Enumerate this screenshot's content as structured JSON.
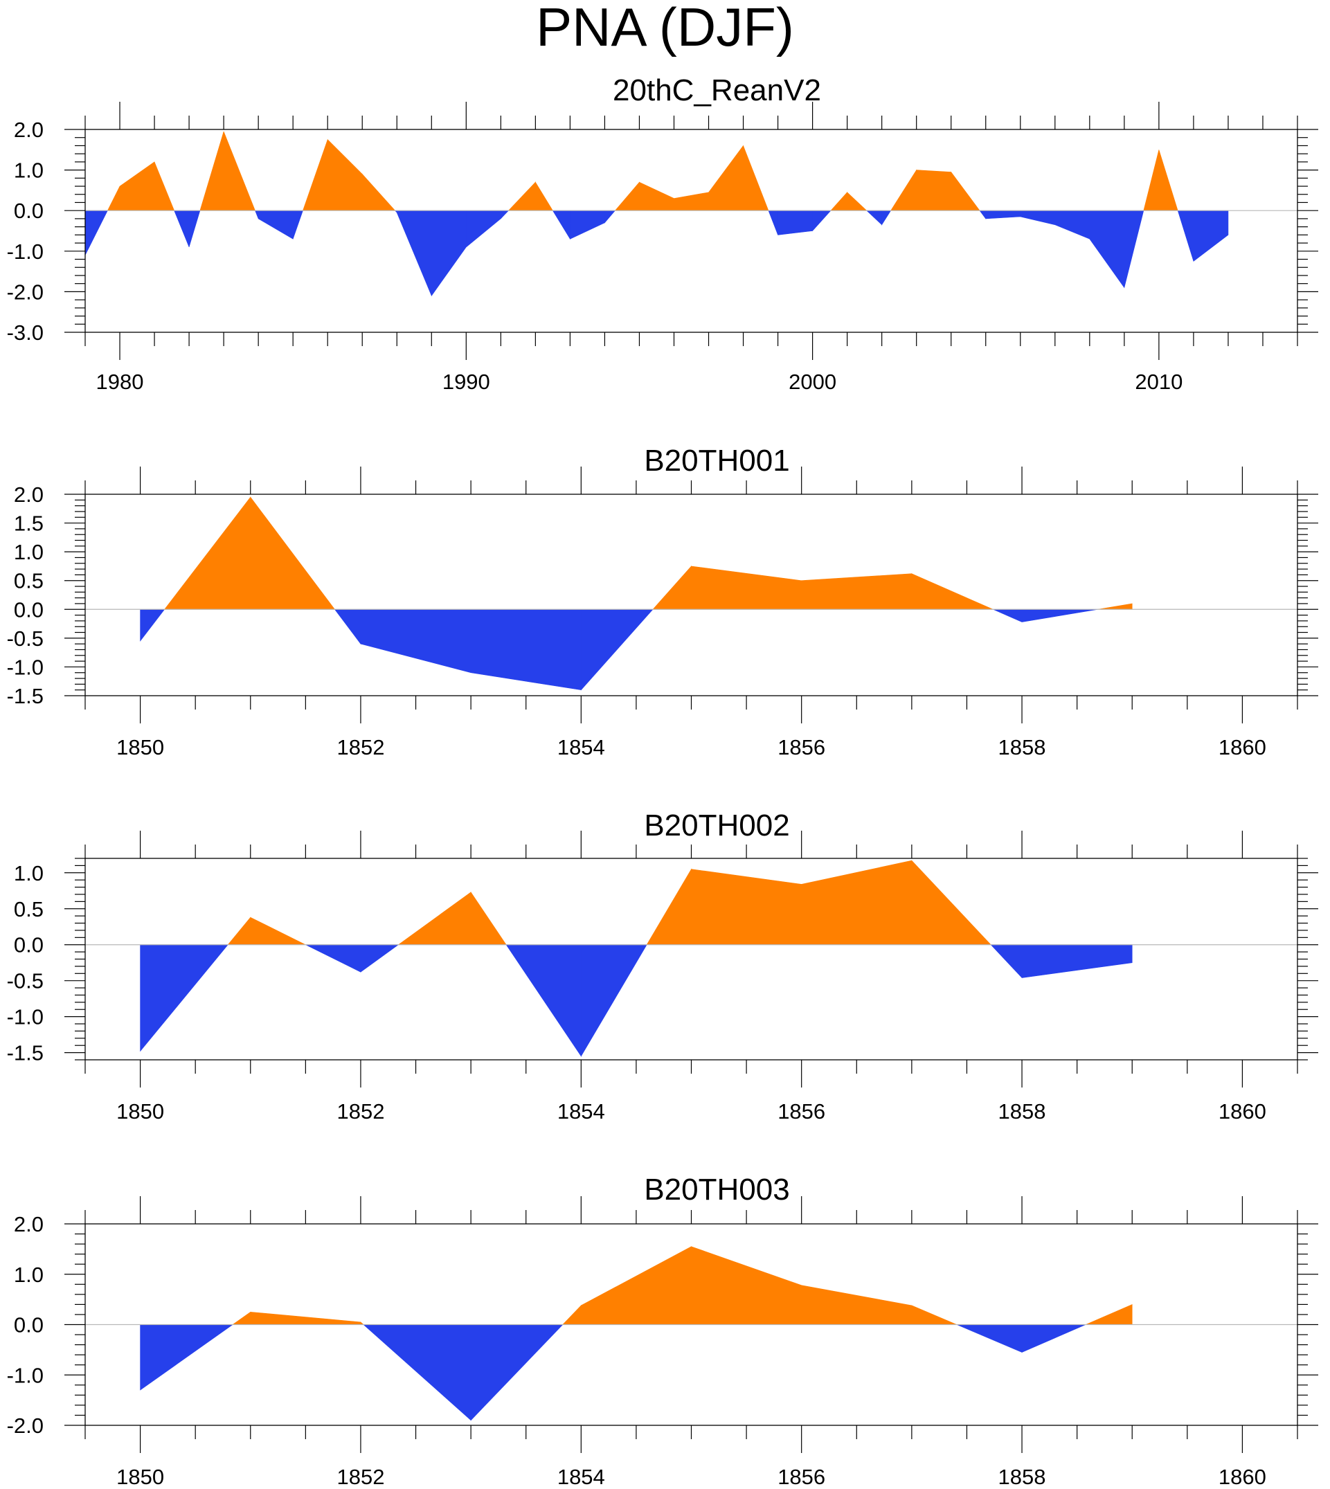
{
  "title": "PNA (DJF)",
  "colors": {
    "positive": "#ff8000",
    "negative": "#2640eb",
    "zero_line": "#b8b8b8",
    "axis": "#000000"
  },
  "chart_data": [
    {
      "type": "area",
      "title": "20thC_ReanV2",
      "x": [
        1979,
        1980,
        1981,
        1982,
        1983,
        1984,
        1985,
        1986,
        1987,
        1988,
        1989,
        1990,
        1991,
        1992,
        1993,
        1994,
        1995,
        1996,
        1997,
        1998,
        1999,
        2000,
        2001,
        2002,
        2003,
        2004,
        2005,
        2006,
        2007,
        2008,
        2009,
        2010,
        2011,
        2012
      ],
      "values": [
        -1.1,
        0.6,
        1.2,
        -0.9,
        1.95,
        -0.2,
        -0.7,
        1.75,
        0.9,
        -0.05,
        -2.1,
        -0.9,
        -0.2,
        0.7,
        -0.7,
        -0.3,
        0.7,
        0.3,
        0.45,
        1.6,
        -0.6,
        -0.5,
        0.45,
        -0.35,
        1.0,
        0.95,
        -0.2,
        -0.15,
        -0.35,
        -0.7,
        -1.9,
        1.5,
        -1.25,
        -0.6
      ],
      "xlim": [
        1979,
        2014
      ],
      "ylim": [
        -3.0,
        2.0
      ],
      "y_ticks": [
        "2.0",
        "1.0",
        "0.0",
        "-1.0",
        "-2.0",
        "-3.0"
      ],
      "x_ticks": [
        "1980",
        "1990",
        "2000",
        "2010"
      ]
    },
    {
      "type": "area",
      "title": "B20TH001",
      "x": [
        1850,
        1851,
        1852,
        1853,
        1854,
        1855,
        1856,
        1857,
        1858,
        1859
      ],
      "values": [
        -0.55,
        1.95,
        -0.6,
        -1.1,
        -1.4,
        0.75,
        0.5,
        0.62,
        -0.22,
        0.1
      ],
      "xlim": [
        1849.5,
        1860.5
      ],
      "ylim": [
        -1.5,
        2.0
      ],
      "y_ticks": [
        "2.0",
        "1.5",
        "1.0",
        "0.5",
        "0.0",
        "-0.5",
        "-1.0",
        "-1.5"
      ],
      "x_ticks": [
        "1850",
        "1852",
        "1854",
        "1856",
        "1858",
        "1860"
      ]
    },
    {
      "type": "area",
      "title": "B20TH002",
      "x": [
        1850,
        1851,
        1852,
        1853,
        1854,
        1855,
        1856,
        1857,
        1858,
        1859
      ],
      "values": [
        -1.48,
        0.38,
        -0.38,
        0.73,
        -1.55,
        1.05,
        0.84,
        1.17,
        -0.46,
        -0.25
      ],
      "xlim": [
        1849.5,
        1860.5
      ],
      "ylim": [
        -1.6,
        1.2
      ],
      "y_ticks": [
        "1.0",
        "0.5",
        "0.0",
        "-0.5",
        "-1.0",
        "-1.5"
      ],
      "x_ticks": [
        "1850",
        "1852",
        "1854",
        "1856",
        "1858",
        "1860"
      ]
    },
    {
      "type": "area",
      "title": "B20TH003",
      "x": [
        1850,
        1851,
        1852,
        1853,
        1854,
        1855,
        1856,
        1857,
        1858,
        1859
      ],
      "values": [
        -1.3,
        0.25,
        0.05,
        -1.9,
        0.38,
        1.55,
        0.78,
        0.38,
        -0.55,
        0.4
      ],
      "xlim": [
        1849.5,
        1860.5
      ],
      "ylim": [
        -2.0,
        2.0
      ],
      "y_ticks": [
        "2.0",
        "1.0",
        "0.0",
        "-1.0",
        "-2.0"
      ],
      "x_ticks": [
        "1850",
        "1852",
        "1854",
        "1856",
        "1858",
        "1860"
      ]
    }
  ]
}
